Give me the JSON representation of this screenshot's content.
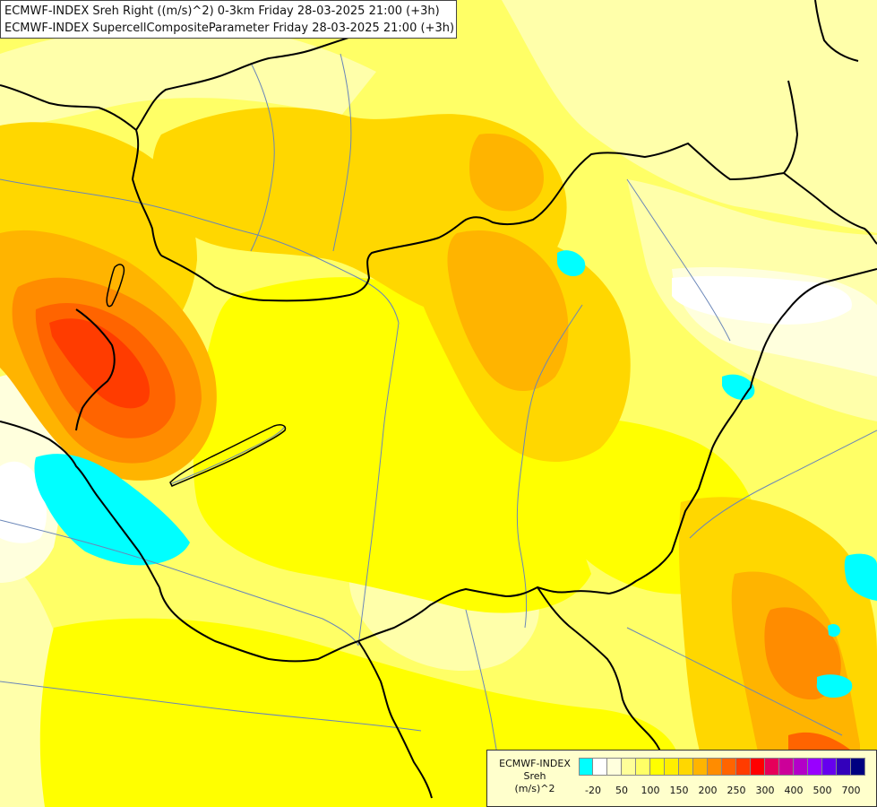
{
  "titles": {
    "line1": "ECMWF-INDEX Sreh Right ((m/s)^2) 0-3km Friday 28-03-2025 21:00 (+3h)",
    "line2": "ECMWF-INDEX SupercellCompositeParameter Friday 28-03-2025 21:00 (+3h)"
  },
  "legend": {
    "title_line1": "ECMWF-INDEX",
    "title_line2": "Sreh",
    "title_line3": "(m/s)^2",
    "swatch_colors": [
      "#00ffff",
      "#ffffff",
      "#ffffdd",
      "#ffff99",
      "#ffff66",
      "#ffff00",
      "#ffee00",
      "#ffd700",
      "#ffb400",
      "#ff8c00",
      "#ff6400",
      "#ff3c00",
      "#ff0000",
      "#e6005a",
      "#cc0099",
      "#b300c8",
      "#9900ff",
      "#6600ee",
      "#3300bb",
      "#000080"
    ],
    "tick_labels": [
      "-20",
      "50",
      "100",
      "150",
      "200",
      "250",
      "300",
      "400",
      "500",
      "700"
    ]
  },
  "map_colors": {
    "base": "#ffff66",
    "light": "#ffffaa",
    "pale": "#ffffdd",
    "white": "#ffffff",
    "yellow": "#ffff00",
    "gold": "#ffd700",
    "orange_light": "#ffb400",
    "orange": "#ff8c00",
    "red_orange": "#ff6400",
    "red": "#ff3c00",
    "cyan": "#00ffff",
    "border": "#000000",
    "river": "#6a86b8"
  }
}
